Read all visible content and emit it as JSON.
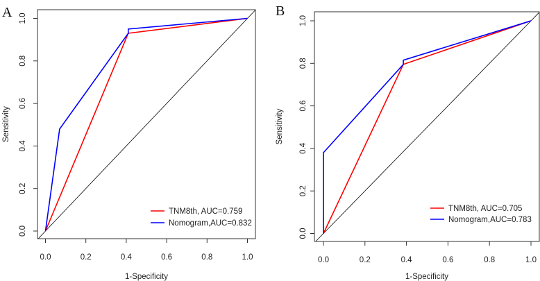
{
  "chart_data": [
    {
      "type": "line",
      "panel_label": "A",
      "xlabel": "1-Specificity",
      "ylabel": "Sensitivity",
      "xlim": [
        0,
        1
      ],
      "ylim": [
        0,
        1
      ],
      "xticks": [
        "0.0",
        "0.2",
        "0.4",
        "0.6",
        "0.8",
        "1.0"
      ],
      "yticks": [
        "0.0",
        "0.2",
        "0.4",
        "0.6",
        "0.8",
        "1.0"
      ],
      "legend_position": "bottom-right",
      "reference_line": "diagonal y=x",
      "series": [
        {
          "name": "TNM8th, AUC=0.759",
          "color": "#ff0000",
          "x": [
            0,
            0.41,
            1
          ],
          "y": [
            0,
            0.93,
            1
          ]
        },
        {
          "name": "Nomogram,AUC=0.832",
          "color": "#0000ff",
          "x": [
            0,
            0.07,
            0.41,
            0.41,
            1
          ],
          "y": [
            0,
            0.48,
            0.93,
            0.95,
            1
          ]
        }
      ]
    },
    {
      "type": "line",
      "panel_label": "B",
      "xlabel": "1-Specificity",
      "ylabel": "Sensitivity",
      "xlim": [
        0,
        1
      ],
      "ylim": [
        0,
        1
      ],
      "xticks": [
        "0.0",
        "0.2",
        "0.4",
        "0.6",
        "0.8",
        "1.0"
      ],
      "yticks": [
        "0.0",
        "0.2",
        "0.4",
        "0.6",
        "0.8",
        "1.0"
      ],
      "legend_position": "bottom-right",
      "reference_line": "diagonal y=x",
      "series": [
        {
          "name": "TNM8th, AUC=0.705",
          "color": "#ff0000",
          "x": [
            0,
            0.385,
            1
          ],
          "y": [
            0,
            0.795,
            1
          ]
        },
        {
          "name": "Nomogram,AUC=0.783",
          "color": "#0000ff",
          "x": [
            0,
            0,
            0.385,
            0.385,
            1
          ],
          "y": [
            0,
            0.38,
            0.795,
            0.815,
            1
          ]
        }
      ]
    }
  ]
}
